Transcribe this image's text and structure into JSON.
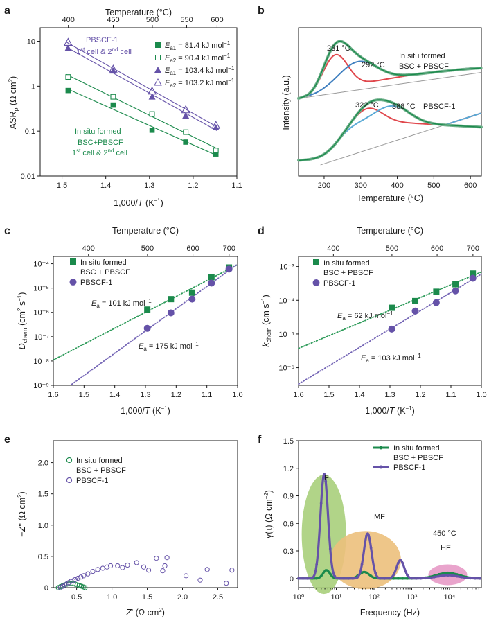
{
  "colors": {
    "green": "#1b8a4c",
    "purple": "#6552a8",
    "red": "#e0474c",
    "blue": "#3f7fbf",
    "lightblue": "#5aaad6",
    "gray": "#9a9a9a",
    "lf_fill": "#a9cf7b",
    "mf_fill": "#ecc07c",
    "hf_fill": "#e79ac7",
    "fit_green": "#2e9b5a",
    "fit_purple": "#7566b6"
  },
  "chart_data": [
    {
      "panel": "a",
      "type": "scatter",
      "xlabel": "1,000/T (K⁻¹)",
      "ylabel": "ASRp (Ω cm²)",
      "top_axis_label": "Temperature (°C)",
      "top_ticks": [
        "400",
        "450",
        "500",
        "550",
        "600"
      ],
      "xlim": [
        1.55,
        1.1
      ],
      "x_ticks": [
        "1.5",
        "1.4",
        "1.3",
        "1.2",
        "1.1"
      ],
      "ylim": [
        0.01,
        20
      ],
      "y_scale": "log",
      "y_ticks": [
        "0.01",
        "0.1",
        "1",
        "10"
      ],
      "group_labels": [
        "PBSCF-1",
        "1st cell & 2nd cell",
        "In situ formed",
        "BSC+PBSCF",
        "1st cell & 2nd cell"
      ],
      "legend": [
        {
          "label": "Ea1 = 81.4 kJ mol⁻¹"
        },
        {
          "label": "Ea2 = 90.4 kJ mol⁻¹"
        },
        {
          "label": "Ea1 = 103.4 kJ mol⁻¹"
        },
        {
          "label": "Ea2 = 103.2 kJ mol⁻¹"
        }
      ],
      "series": [
        {
          "x": [
            1.486,
            1.383,
            1.294,
            1.217,
            1.148
          ],
          "y": [
            0.8,
            0.38,
            0.105,
            0.057,
            0.031
          ]
        },
        {
          "x": [
            1.486,
            1.383,
            1.294,
            1.217,
            1.148
          ],
          "y": [
            1.6,
            0.58,
            0.24,
            0.095,
            0.037
          ]
        },
        {
          "x": [
            1.486,
            1.383,
            1.294,
            1.217,
            1.148
          ],
          "y": [
            7.0,
            2.2,
            0.58,
            0.22,
            0.12
          ]
        },
        {
          "x": [
            1.486,
            1.383,
            1.294,
            1.217,
            1.148
          ],
          "y": [
            9.5,
            2.4,
            0.78,
            0.3,
            0.135
          ]
        }
      ]
    },
    {
      "panel": "b",
      "type": "line",
      "xlabel": "Temperature (°C)",
      "ylabel": "Intensity (a.u.)",
      "xlim": [
        130,
        630
      ],
      "x_ticks": [
        "200",
        "300",
        "400",
        "500",
        "600"
      ],
      "annotations": [
        "231 °C",
        "292 °C",
        "In situ formed",
        "BSC + PBSCF",
        "322 °C",
        "388 °C",
        "PBSCF-1"
      ],
      "upper_peaks_c": [
        231,
        292
      ],
      "lower_peaks_c": [
        322,
        388
      ]
    },
    {
      "panel": "c",
      "type": "scatter",
      "xlabel": "1,000/T (K⁻¹)",
      "ylabel": "Dchem (cm² s⁻¹)",
      "top_axis_label": "Temperature (°C)",
      "top_ticks": [
        "400",
        "500",
        "600",
        "700"
      ],
      "xlim": [
        1.6,
        1.0
      ],
      "x_ticks": [
        "1.6",
        "1.5",
        "1.4",
        "1.3",
        "1.2",
        "1.1",
        "1.0"
      ],
      "ylim": [
        1e-09,
        0.0002
      ],
      "y_scale": "log",
      "y_ticks": [
        "10⁻⁹",
        "10⁻⁸",
        "10⁻⁷",
        "10⁻⁶",
        "10⁻⁵",
        "10⁻⁴"
      ],
      "legend": [
        {
          "label": "In situ formed"
        },
        {
          "label": "BSC + PBSCF"
        },
        {
          "label": "PBSCF-1"
        }
      ],
      "annotations": [
        "Ea = 101 kJ mol⁻¹",
        "Ea = 175 kJ mol⁻¹"
      ],
      "series": [
        {
          "name": "In situ formed BSC + PBSCF",
          "x": [
            1.294,
            1.217,
            1.148,
            1.085,
            1.028
          ],
          "y": [
            1.3e-06,
            3.5e-06,
            6.5e-06,
            2.8e-05,
            7e-05
          ]
        },
        {
          "name": "PBSCF-1",
          "x": [
            1.294,
            1.217,
            1.148,
            1.085,
            1.028
          ],
          "y": [
            2.2e-07,
            9.5e-07,
            3.5e-06,
            1.6e-05,
            6e-05
          ]
        }
      ]
    },
    {
      "panel": "d",
      "type": "scatter",
      "xlabel": "1,000/T (K⁻¹)",
      "ylabel": "kchem (cm s⁻¹)",
      "top_axis_label": "Temperature (°C)",
      "top_ticks": [
        "400",
        "500",
        "600",
        "700"
      ],
      "xlim": [
        1.6,
        1.0
      ],
      "x_ticks": [
        "1.6",
        "1.5",
        "1.4",
        "1.3",
        "1.2",
        "1.1",
        "1.0"
      ],
      "ylim": [
        3e-07,
        0.002
      ],
      "y_scale": "log",
      "y_ticks": [
        "10⁻⁶",
        "10⁻⁵",
        "10⁻⁴",
        "10⁻³"
      ],
      "legend": [
        {
          "label": "In situ formed"
        },
        {
          "label": "BSC + PBSCF"
        },
        {
          "label": "PBSCF-1"
        }
      ],
      "annotations": [
        "Ea = 62 kJ mol⁻¹",
        "Ea = 103 kJ mol⁻¹"
      ],
      "series": [
        {
          "name": "In situ formed BSC + PBSCF",
          "x": [
            1.294,
            1.217,
            1.148,
            1.085,
            1.028
          ],
          "y": [
            6e-05,
            9.5e-05,
            0.00018,
            0.0003,
            0.00062
          ]
        },
        {
          "name": "PBSCF-1",
          "x": [
            1.294,
            1.217,
            1.148,
            1.085,
            1.028
          ],
          "y": [
            1.4e-05,
            4.8e-05,
            8.5e-05,
            0.00019,
            0.00045
          ]
        }
      ]
    },
    {
      "panel": "e",
      "type": "scatter",
      "xlabel": "Z' (Ω cm²)",
      "ylabel": "−Z'' (Ω cm²)",
      "xlim": [
        0.17,
        2.78
      ],
      "x_ticks": [
        "0.5",
        "1.0",
        "1.5",
        "2.0",
        "2.5"
      ],
      "ylim": [
        0,
        2.35
      ],
      "y_ticks": [
        "0",
        "0.5",
        "1.0",
        "1.5",
        "2.0"
      ],
      "legend": [
        {
          "label": "In situ formed"
        },
        {
          "label": "BSC + PBSCF"
        },
        {
          "label": "PBSCF-1"
        }
      ],
      "series": [
        {
          "name": "In situ formed BSC + PBSCF",
          "x": [
            0.24,
            0.27,
            0.3,
            0.33,
            0.36,
            0.39,
            0.42,
            0.45,
            0.48,
            0.51,
            0.54,
            0.57,
            0.6,
            0.62
          ],
          "y": [
            0.0,
            0.015,
            0.03,
            0.045,
            0.055,
            0.06,
            0.062,
            0.06,
            0.055,
            0.045,
            0.035,
            0.022,
            0.01,
            0.0
          ]
        },
        {
          "name": "PBSCF-1",
          "x": [
            0.27,
            0.3,
            0.33,
            0.36,
            0.39,
            0.42,
            0.45,
            0.48,
            0.52,
            0.56,
            0.6,
            0.66,
            0.73,
            0.8,
            0.87,
            0.93,
            0.98,
            1.08,
            1.15,
            1.22,
            1.35,
            1.45,
            1.52,
            1.63,
            1.72,
            1.75,
            1.78,
            2.05,
            2.25,
            2.35,
            2.62,
            2.7
          ],
          "y": [
            0.0,
            0.02,
            0.04,
            0.06,
            0.08,
            0.1,
            0.11,
            0.13,
            0.15,
            0.17,
            0.19,
            0.22,
            0.26,
            0.29,
            0.31,
            0.33,
            0.35,
            0.35,
            0.32,
            0.36,
            0.4,
            0.33,
            0.28,
            0.47,
            0.27,
            0.35,
            0.48,
            0.19,
            0.12,
            0.29,
            0.07,
            0.28
          ]
        }
      ]
    },
    {
      "panel": "f",
      "type": "line",
      "xlabel": "Frequency (Hz)",
      "ylabel": "γ(τ) (Ω cm⁻²)",
      "x_scale": "log",
      "xlim": [
        1,
        70000
      ],
      "x_ticks": [
        "10⁰",
        "10¹",
        "10²",
        "10³",
        "10⁴"
      ],
      "ylim": [
        -0.1,
        1.5
      ],
      "y_ticks": [
        "0",
        "0.3",
        "0.6",
        "0.9",
        "1.2",
        "1.5"
      ],
      "legend": [
        {
          "label": "In situ formed"
        },
        {
          "label": "BSC + PBSCF"
        },
        {
          "label": "PBSCF-1"
        }
      ],
      "regions": [
        "LF",
        "MF",
        "HF"
      ],
      "annotations": [
        "450 °C"
      ],
      "series": [
        {
          "name": "PBSCF-1",
          "peaks": [
            {
              "f": 4.8,
              "h": 1.14,
              "w": 0.1
            },
            {
              "f": 68,
              "h": 0.49,
              "w": 0.1
            },
            {
              "f": 500,
              "h": 0.2,
              "w": 0.1
            },
            {
              "f": 9000,
              "h": 0.035,
              "w": 0.28
            }
          ]
        },
        {
          "name": "In situ formed BSC + PBSCF",
          "peaks": [
            {
              "f": 5.5,
              "h": 0.09,
              "w": 0.09
            },
            {
              "f": 55,
              "h": 0.07,
              "w": 0.13
            },
            {
              "f": 9000,
              "h": 0.06,
              "w": 0.3
            }
          ]
        }
      ]
    }
  ]
}
